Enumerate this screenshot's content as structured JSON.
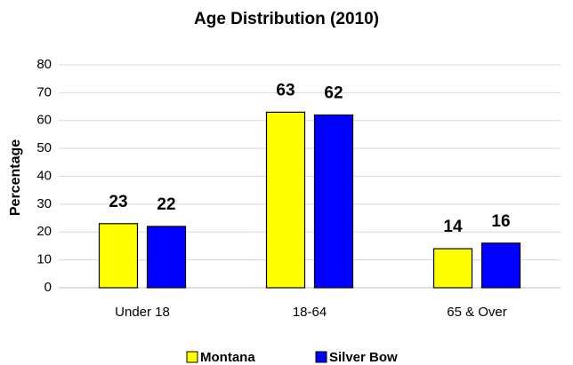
{
  "chart_data": {
    "type": "bar",
    "title": "Age Distribution (2010)",
    "y_label": "Percentage",
    "categories": [
      "Under 18",
      "18-64",
      "65 & Over"
    ],
    "series": [
      {
        "name": "Montana",
        "color": "#ffff00",
        "values": [
          23,
          63,
          14
        ]
      },
      {
        "name": "Silver Bow",
        "color": "#0000ff",
        "values": [
          22,
          62,
          16
        ]
      }
    ],
    "ylim": [
      0,
      80
    ],
    "yticks": [
      0,
      10,
      20,
      30,
      40,
      50,
      60,
      70,
      80
    ],
    "grid": true,
    "legend": "bottom"
  }
}
